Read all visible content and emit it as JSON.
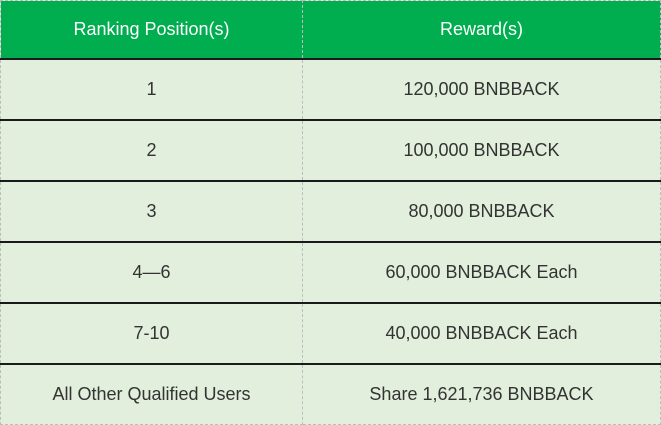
{
  "headers": {
    "position": "Ranking Position(s)",
    "reward": "Reward(s)"
  },
  "rows": [
    {
      "position": "1",
      "reward": "120,000 BNBBACK"
    },
    {
      "position": "2",
      "reward": "100,000 BNBBACK"
    },
    {
      "position": "3",
      "reward": "80,000 BNBBACK"
    },
    {
      "position": "4—6",
      "reward": "60,000 BNBBACK Each"
    },
    {
      "position": "7-10",
      "reward": "40,000 BNBBACK Each"
    },
    {
      "position": "All Other Qualified Users",
      "reward": "Share 1,621,736 BNBBACK"
    }
  ],
  "colors": {
    "header_bg": "#00ad4f",
    "row_bg": "#e2efdc"
  }
}
